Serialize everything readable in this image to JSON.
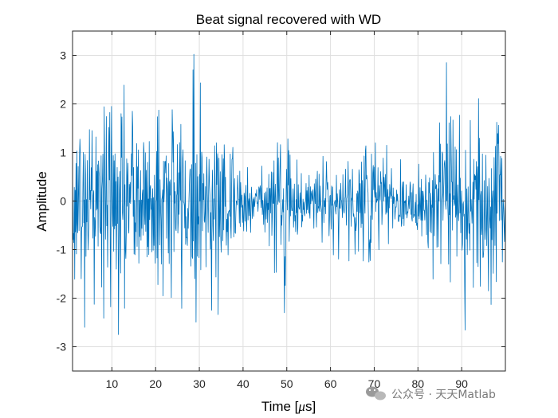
{
  "chart_data": {
    "type": "line",
    "title": "Beat signal recovered with WD",
    "xlabel_prefix": "Time [",
    "xlabel_unit_symbol": "μ",
    "xlabel_suffix": "s]",
    "ylabel": "Amplitude",
    "xlim": [
      1,
      100
    ],
    "ylim": [
      -3.5,
      3.5
    ],
    "xticks": [
      10,
      20,
      30,
      40,
      50,
      60,
      70,
      80,
      90
    ],
    "yticks": [
      3,
      2,
      1,
      0,
      -1,
      -2,
      -3
    ],
    "grid": true,
    "series": [
      {
        "name": "beat signal",
        "color": "#0072BD",
        "sample_count": 1000,
        "envelope": {
          "x": [
            1,
            5,
            10,
            15,
            20,
            25,
            30,
            35,
            40,
            43,
            46,
            49,
            52,
            55,
            60,
            65,
            68,
            71,
            75,
            80,
            84,
            88,
            92,
            96,
            100
          ],
          "amplitude": [
            0.85,
            1.05,
            1.05,
            0.95,
            1.0,
            0.95,
            1.0,
            0.85,
            0.55,
            0.15,
            0.45,
            0.9,
            0.45,
            0.25,
            0.45,
            0.55,
            0.9,
            0.6,
            0.3,
            0.4,
            0.7,
            1.0,
            1.05,
            0.95,
            0.95
          ]
        },
        "peaks": [
          {
            "x": 3.8,
            "y": -2.6
          },
          {
            "x": 11.5,
            "y": -2.75
          },
          {
            "x": 28.5,
            "y": 2.7
          },
          {
            "x": 49.5,
            "y": -2.3
          },
          {
            "x": 86.5,
            "y": 2.85
          }
        ]
      }
    ]
  },
  "watermark": {
    "text": "公众号 · 天天Matlab",
    "icon": "wechat-icon"
  }
}
